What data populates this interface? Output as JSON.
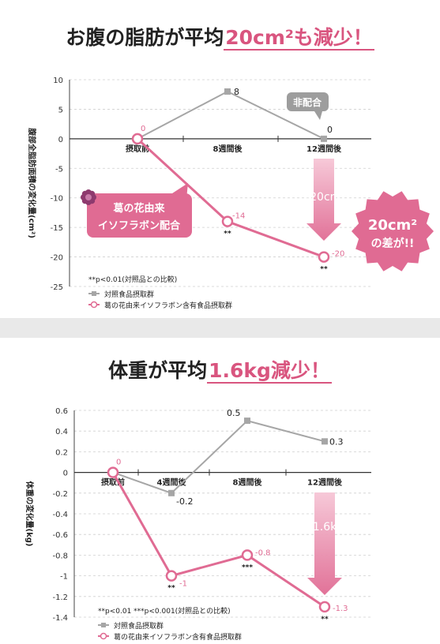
{
  "accent": "#e06b93",
  "control_color": "#a6a6a6",
  "chart1": {
    "title_main": "お腹の脂肪が平均",
    "title_highlight": "20cm²も減少！",
    "ylabel": "腹部全脂肪面積の変化量(cm²)",
    "note": "**p<0.01(対照品との比較)",
    "badge_control": "非配合",
    "badge_test": "葛の花由来\nイソフラボン配合",
    "diff_label": "-20cm²",
    "burst_text": "20cm²\nの差が!!",
    "legend": [
      "対照食品摂取群",
      "葛の花由来イソフラボン含有食品摂取群"
    ]
  },
  "chart2": {
    "title_main": "体重が平均",
    "title_highlight": "1.6kg減少！",
    "ylabel": "体重の変化量(kg)",
    "note": "**p<0.01 ***p<0.001(対照品との比較)",
    "diff_label": "-1.6kg",
    "legend": [
      "対照食品摂取群",
      "葛の花由来イソフラボン含有食品摂取群"
    ]
  },
  "chart_data": [
    {
      "type": "line",
      "title": "お腹の脂肪が平均20cm²も減少！",
      "ylabel": "腹部全脂肪面積の変化量(cm²)",
      "categories": [
        "摂取前",
        "8週間後",
        "12週間後"
      ],
      "ylim": [
        -25,
        10
      ],
      "yticks": [
        10,
        5,
        0,
        -5,
        -10,
        -15,
        -20,
        -25
      ],
      "series": [
        {
          "name": "対照食品摂取群",
          "values": [
            0,
            8,
            0
          ],
          "labels": [
            "",
            "8",
            "0"
          ]
        },
        {
          "name": "葛の花由来イソフラボン含有食品摂取群",
          "values": [
            0,
            -14,
            -20
          ],
          "labels": [
            "0",
            "-14",
            "-20"
          ],
          "sig": [
            "",
            "**",
            "**"
          ]
        }
      ]
    },
    {
      "type": "line",
      "title": "体重が平均1.6kg減少！",
      "ylabel": "体重の変化量(kg)",
      "categories": [
        "摂取前",
        "4週間後",
        "8週間後",
        "12週間後"
      ],
      "ylim": [
        -1.4,
        0.6
      ],
      "yticks": [
        0.6,
        0.4,
        0.2,
        0,
        -0.2,
        -0.4,
        -0.6,
        -0.8,
        -1,
        -1.2,
        -1.4
      ],
      "series": [
        {
          "name": "対照食品摂取群",
          "values": [
            0,
            -0.2,
            0.5,
            0.3
          ],
          "labels": [
            "",
            "-0.2",
            "0.5",
            "0.3"
          ]
        },
        {
          "name": "葛の花由来イソフラボン含有食品摂取群",
          "values": [
            0,
            -1,
            -0.8,
            -1.3
          ],
          "labels": [
            "0",
            "-1",
            "-0.8",
            "-1.3"
          ],
          "sig": [
            "",
            "**",
            "***",
            "**"
          ]
        }
      ]
    }
  ]
}
